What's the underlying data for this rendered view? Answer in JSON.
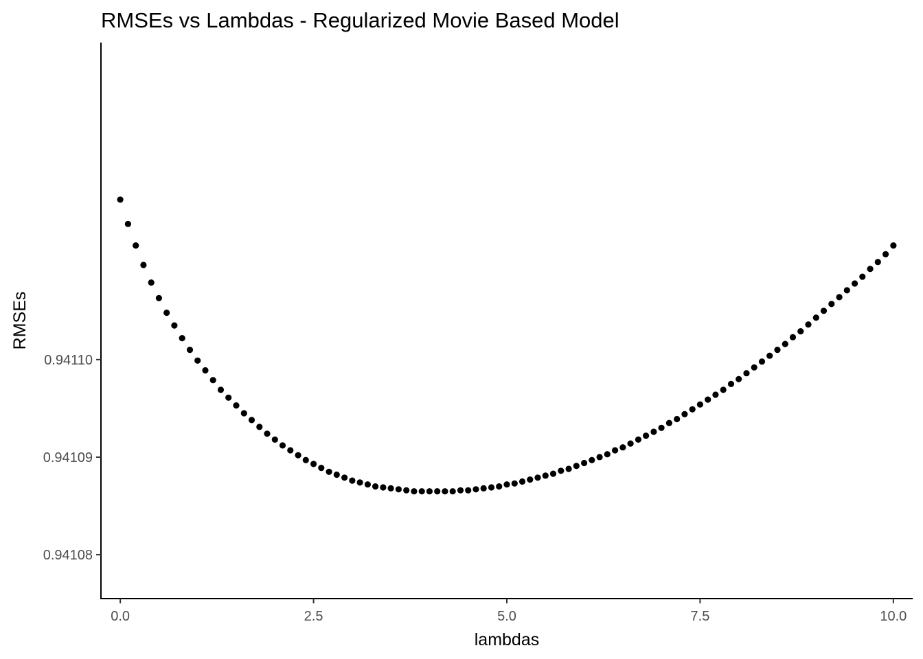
{
  "chart_data": {
    "type": "scatter",
    "title": "RMSEs vs Lambdas - Regularized Movie Based Model",
    "xlabel": "lambdas",
    "ylabel": "RMSEs",
    "xlim": [
      -0.25,
      10.25
    ],
    "ylim": [
      0.9410755,
      0.9411325
    ],
    "x_ticks": [
      0,
      2.5,
      5,
      7.5,
      10
    ],
    "x_tick_labels": [
      "0.0",
      "2.5",
      "5.0",
      "7.5",
      "10.0"
    ],
    "y_ticks": [
      0.94108,
      0.94109,
      0.9411
    ],
    "y_tick_labels": [
      "0.94108",
      "0.94109",
      "0.94110"
    ],
    "grid": false,
    "legend": "none",
    "point_color": "#000000",
    "x": [
      0.0,
      0.1,
      0.2,
      0.3,
      0.4,
      0.5,
      0.6,
      0.7,
      0.8,
      0.9,
      1.0,
      1.1,
      1.2,
      1.3,
      1.4,
      1.5,
      1.6,
      1.7,
      1.8,
      1.9,
      2.0,
      2.1,
      2.2,
      2.3,
      2.4,
      2.5,
      2.6,
      2.7,
      2.8,
      2.9,
      3.0,
      3.1,
      3.2,
      3.3,
      3.4,
      3.5,
      3.6,
      3.7,
      3.8,
      3.9,
      4.0,
      4.1,
      4.2,
      4.3,
      4.4,
      4.5,
      4.6,
      4.7,
      4.8,
      4.9,
      5.0,
      5.1,
      5.2,
      5.3,
      5.4,
      5.5,
      5.6,
      5.7,
      5.8,
      5.9,
      6.0,
      6.1,
      6.2,
      6.3,
      6.4,
      6.5,
      6.6,
      6.7,
      6.8,
      6.9,
      7.0,
      7.1,
      7.2,
      7.3,
      7.4,
      7.5,
      7.6,
      7.7,
      7.8,
      7.9,
      8.0,
      8.1,
      8.2,
      8.3,
      8.4,
      8.5,
      8.6,
      8.7,
      8.8,
      8.9,
      9.0,
      9.1,
      9.2,
      9.3,
      9.4,
      9.5,
      9.6,
      9.7,
      9.8,
      9.9,
      10.0
    ],
    "y": [
      0.9411164,
      0.9411139,
      0.9411117,
      0.9411097,
      0.9411079,
      0.9411063,
      0.9411048,
      0.9411035,
      0.9411022,
      0.941101,
      0.9410999,
      0.9410989,
      0.9410979,
      0.9410969,
      0.9410961,
      0.9410953,
      0.9410945,
      0.9410938,
      0.9410931,
      0.9410924,
      0.9410918,
      0.9410912,
      0.9410907,
      0.9410902,
      0.9410897,
      0.9410893,
      0.9410889,
      0.9410885,
      0.9410882,
      0.9410879,
      0.9410876,
      0.9410874,
      0.9410872,
      0.941087,
      0.9410869,
      0.9410868,
      0.9410867,
      0.9410866,
      0.9410865,
      0.9410865,
      0.9410865,
      0.9410865,
      0.9410865,
      0.9410865,
      0.9410866,
      0.9410866,
      0.9410867,
      0.9410868,
      0.9410869,
      0.941087,
      0.9410872,
      0.9410873,
      0.9410875,
      0.9410877,
      0.9410879,
      0.9410881,
      0.9410883,
      0.9410886,
      0.9410888,
      0.9410891,
      0.9410894,
      0.9410897,
      0.94109,
      0.9410903,
      0.9410907,
      0.941091,
      0.9410914,
      0.9410918,
      0.9410922,
      0.9410926,
      0.941093,
      0.9410935,
      0.9410939,
      0.9410944,
      0.9410949,
      0.9410954,
      0.9410959,
      0.9410964,
      0.9410969,
      0.9410975,
      0.941098,
      0.9410986,
      0.9410992,
      0.9410998,
      0.9411004,
      0.941101,
      0.9411016,
      0.9411023,
      0.9411029,
      0.9411036,
      0.9411043,
      0.941105,
      0.9411057,
      0.9411064,
      0.9411071,
      0.9411078,
      0.9411085,
      0.9411093,
      0.94111,
      0.9411108,
      0.9411117
    ]
  }
}
